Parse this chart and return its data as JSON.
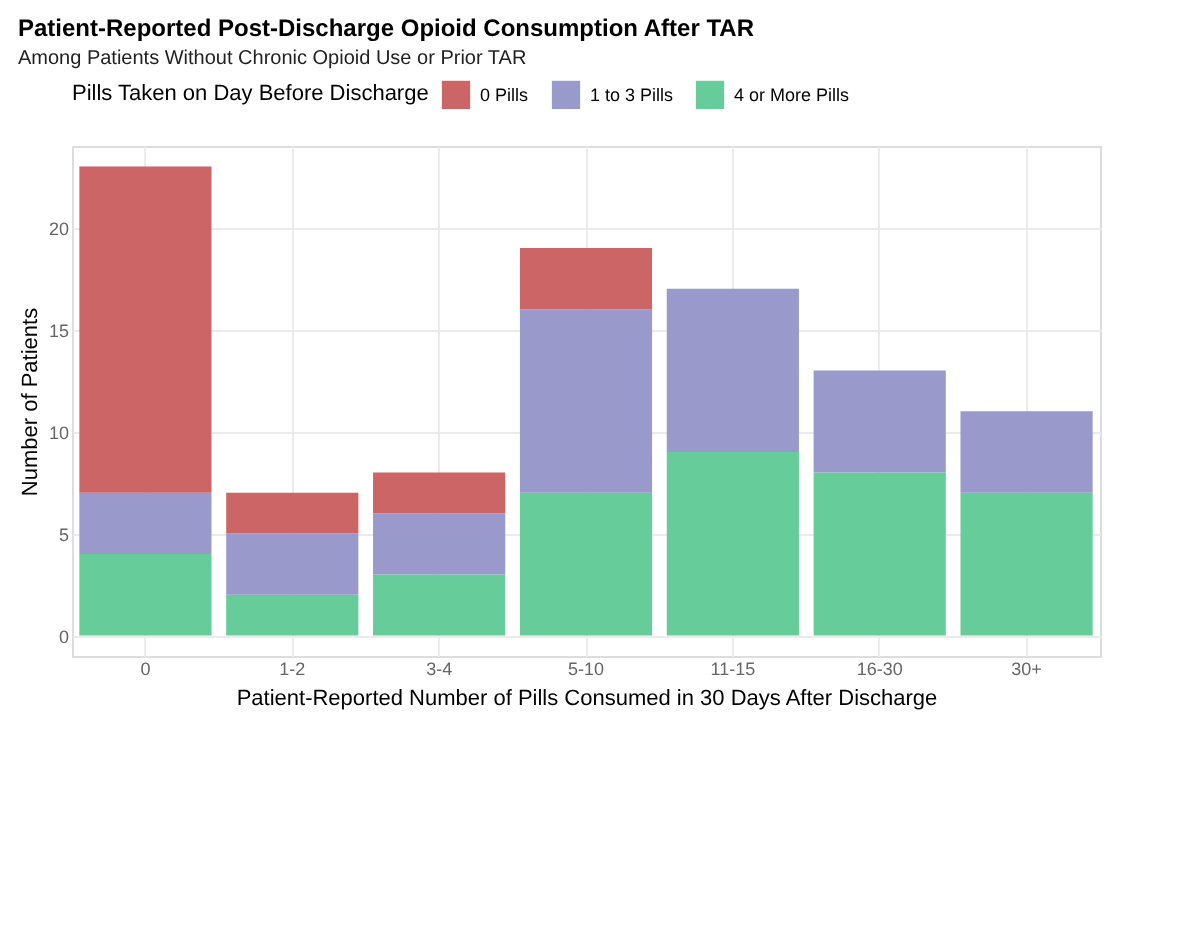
{
  "chart_data": {
    "type": "bar",
    "stacked": true,
    "title": "Patient-Reported Post-Discharge Opioid Consumption After TAR",
    "subtitle": "Among Patients Without Chronic Opioid Use or Prior TAR",
    "xlabel": "Patient-Reported Number of Pills Consumed in 30 Days After Discharge",
    "ylabel": "Number of Patients",
    "legend_title": "Pills Taken on Day Before Discharge",
    "categories": [
      "0",
      "1-2",
      "3-4",
      "5-10",
      "11-15",
      "16-30",
      "30+"
    ],
    "series": [
      {
        "name": "4 or More Pills",
        "color": "#66cc99",
        "values": [
          4,
          2,
          3,
          7,
          9,
          8,
          7
        ]
      },
      {
        "name": "1 to 3 Pills",
        "color": "#9999cc",
        "values": [
          3,
          3,
          3,
          9,
          8,
          5,
          4
        ]
      },
      {
        "name": "0 Pills",
        "color": "#cc6666",
        "values": [
          16,
          2,
          2,
          3,
          0,
          0,
          0
        ]
      }
    ],
    "ylim": [
      -1,
      24
    ],
    "yticks": [
      0,
      5,
      10,
      15,
      20
    ],
    "grid": true,
    "legend": "top"
  }
}
